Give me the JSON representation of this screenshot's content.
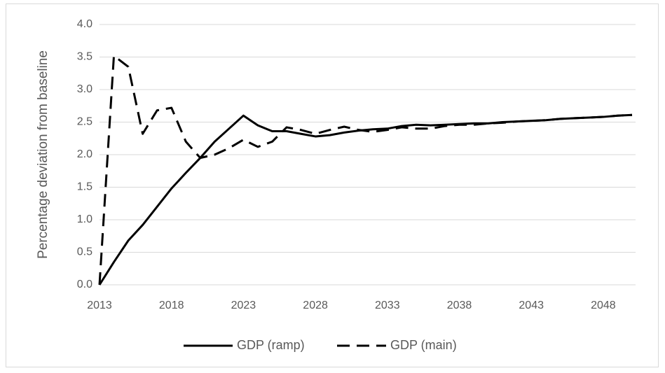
{
  "chart_data": {
    "type": "line",
    "y_label": "Percentage deviation from baseline",
    "x": [
      2013,
      2014,
      2015,
      2016,
      2017,
      2018,
      2019,
      2020,
      2021,
      2022,
      2023,
      2024,
      2025,
      2026,
      2027,
      2028,
      2029,
      2030,
      2031,
      2032,
      2033,
      2034,
      2035,
      2036,
      2037,
      2038,
      2039,
      2040,
      2041,
      2042,
      2043,
      2044,
      2045,
      2046,
      2047,
      2048,
      2049,
      2050
    ],
    "series": [
      {
        "name": "GDP (ramp)",
        "color": "#000000",
        "style": "solid",
        "values": [
          0.0,
          0.35,
          0.68,
          0.92,
          1.2,
          1.48,
          1.72,
          1.95,
          2.2,
          2.4,
          2.6,
          2.45,
          2.36,
          2.36,
          2.32,
          2.28,
          2.3,
          2.34,
          2.37,
          2.39,
          2.4,
          2.44,
          2.46,
          2.45,
          2.46,
          2.47,
          2.48,
          2.48,
          2.5,
          2.51,
          2.52,
          2.53,
          2.55,
          2.56,
          2.57,
          2.58,
          2.6,
          2.61
        ]
      },
      {
        "name": "GDP (main)",
        "color": "#000000",
        "style": "dashed",
        "values": [
          0.0,
          3.52,
          3.35,
          2.32,
          2.68,
          2.72,
          2.2,
          1.95,
          2.0,
          2.1,
          2.23,
          2.12,
          2.2,
          2.42,
          2.38,
          2.32,
          2.38,
          2.43,
          2.38,
          2.35,
          2.38,
          2.42,
          2.4,
          2.4,
          2.44,
          2.46,
          2.46,
          2.48,
          2.49,
          2.51,
          2.52,
          2.53,
          2.55,
          2.56,
          2.57,
          2.58,
          2.6,
          2.61
        ]
      }
    ],
    "xlim": [
      2013,
      2050
    ],
    "xticks": [
      2013,
      2018,
      2023,
      2028,
      2033,
      2038,
      2043,
      2048
    ],
    "ylim": [
      0,
      4
    ],
    "yticks": [
      {
        "value": 0,
        "label": "0.0"
      },
      0.5,
      {
        "value": 1,
        "label": "1.0"
      },
      1.5,
      {
        "value": 2,
        "label": "2.0"
      },
      2.5,
      {
        "value": 3,
        "label": "3.0"
      },
      3.5,
      {
        "value": 4,
        "label": "4.0"
      }
    ],
    "grid": true,
    "legend": "bottom"
  }
}
